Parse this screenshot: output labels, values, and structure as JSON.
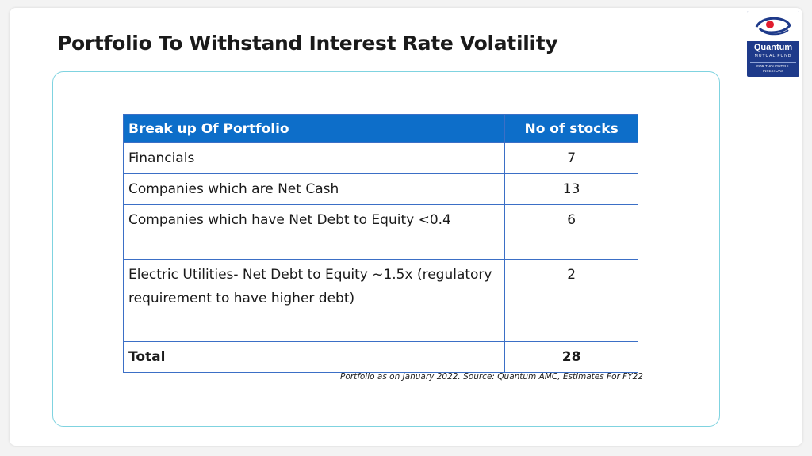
{
  "slide": {
    "title": "Portfolio To Withstand Interest Rate Volatility"
  },
  "logo": {
    "name": "Quantum",
    "subtitle": "MUTUAL FUND",
    "tagline_line1": "FOR THOUGHTFUL",
    "tagline_line2": "INVESTORS",
    "colors": {
      "background": "#1e3a8a",
      "accent": "#e11d2e"
    }
  },
  "table": {
    "headers": [
      "Break up Of Portfolio",
      "No of stocks"
    ],
    "rows": [
      {
        "label": "Financials",
        "value": "7"
      },
      {
        "label": "Companies which are Net Cash",
        "value": "13"
      },
      {
        "label": "Companies which have Net Debt to Equity <0.4",
        "value": "6"
      },
      {
        "label": "Electric Utilities- Net Debt to Equity ~1.5x (regulatory requirement to have higher debt)",
        "value": "2"
      }
    ],
    "total": {
      "label": "Total",
      "value": "28"
    },
    "header_color": "#0d6ec9",
    "border_color": "#3b6fc6"
  },
  "footnote": "Portfolio as on January 2022. Source: Quantum AMC, Estimates For FY22"
}
